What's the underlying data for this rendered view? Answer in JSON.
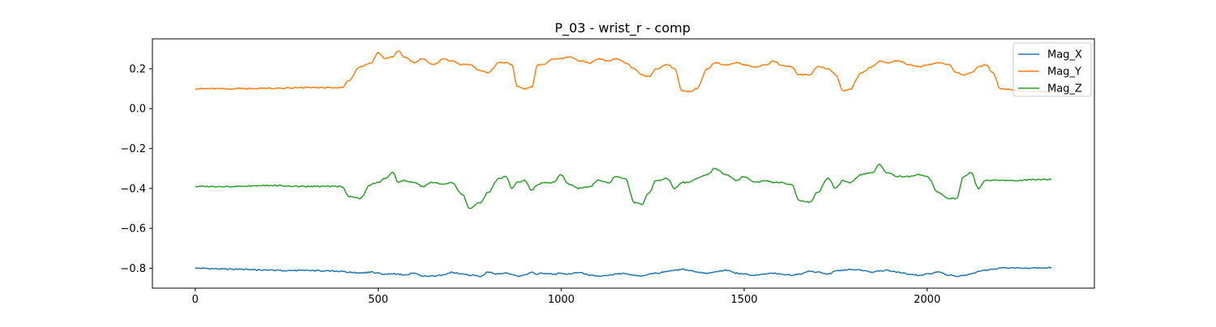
{
  "chart_data": {
    "type": "line",
    "title": "P_03 - wrist_r - comp",
    "xlabel": "",
    "ylabel": "",
    "xlim": [
      -117,
      2457
    ],
    "ylim": [
      -0.9,
      0.35
    ],
    "xticks": [
      0,
      500,
      1000,
      1500,
      2000
    ],
    "xtick_labels": [
      "0",
      "500",
      "1000",
      "1500",
      "2000"
    ],
    "yticks": [
      -0.8,
      -0.6,
      -0.4,
      -0.2,
      0.0,
      0.2
    ],
    "ytick_labels": [
      "−0.8",
      "−0.6",
      "−0.4",
      "−0.2",
      "0.0",
      "0.2"
    ],
    "grid": false,
    "legend_position": "upper-right",
    "x": [
      0,
      100,
      200,
      300,
      400,
      420,
      450,
      480,
      500,
      520,
      540,
      555,
      570,
      600,
      620,
      650,
      680,
      700,
      730,
      750,
      780,
      800,
      830,
      850,
      865,
      880,
      900,
      920,
      935,
      950,
      980,
      1000,
      1020,
      1050,
      1080,
      1100,
      1130,
      1150,
      1175,
      1200,
      1220,
      1240,
      1260,
      1290,
      1310,
      1330,
      1350,
      1370,
      1400,
      1420,
      1450,
      1480,
      1500,
      1530,
      1560,
      1580,
      1600,
      1630,
      1650,
      1680,
      1700,
      1730,
      1750,
      1770,
      1790,
      1820,
      1850,
      1870,
      1890,
      1920,
      1950,
      1980,
      2000,
      2030,
      2060,
      2080,
      2100,
      2120,
      2140,
      2160,
      2180,
      2200,
      2250,
      2300,
      2340
    ],
    "series": [
      {
        "name": "Mag_X",
        "color": "#1f77b4",
        "values": [
          -0.8,
          -0.805,
          -0.81,
          -0.812,
          -0.815,
          -0.82,
          -0.825,
          -0.82,
          -0.825,
          -0.83,
          -0.828,
          -0.83,
          -0.835,
          -0.825,
          -0.84,
          -0.84,
          -0.835,
          -0.82,
          -0.83,
          -0.835,
          -0.84,
          -0.82,
          -0.83,
          -0.825,
          -0.83,
          -0.84,
          -0.835,
          -0.82,
          -0.83,
          -0.825,
          -0.83,
          -0.825,
          -0.83,
          -0.82,
          -0.835,
          -0.84,
          -0.835,
          -0.83,
          -0.825,
          -0.835,
          -0.84,
          -0.83,
          -0.825,
          -0.815,
          -0.81,
          -0.805,
          -0.81,
          -0.82,
          -0.825,
          -0.82,
          -0.81,
          -0.825,
          -0.83,
          -0.835,
          -0.83,
          -0.825,
          -0.83,
          -0.835,
          -0.83,
          -0.815,
          -0.82,
          -0.83,
          -0.815,
          -0.81,
          -0.805,
          -0.81,
          -0.82,
          -0.815,
          -0.81,
          -0.82,
          -0.83,
          -0.835,
          -0.83,
          -0.82,
          -0.835,
          -0.84,
          -0.835,
          -0.83,
          -0.815,
          -0.81,
          -0.805,
          -0.8,
          -0.8,
          -0.798,
          -0.797
        ]
      },
      {
        "name": "Mag_Y",
        "color": "#ff7f0e",
        "values": [
          0.1,
          0.1,
          0.102,
          0.105,
          0.105,
          0.14,
          0.21,
          0.23,
          0.28,
          0.25,
          0.26,
          0.29,
          0.26,
          0.23,
          0.25,
          0.22,
          0.25,
          0.24,
          0.22,
          0.22,
          0.19,
          0.18,
          0.23,
          0.23,
          0.22,
          0.11,
          0.1,
          0.11,
          0.22,
          0.22,
          0.25,
          0.25,
          0.26,
          0.24,
          0.23,
          0.25,
          0.24,
          0.25,
          0.23,
          0.2,
          0.17,
          0.16,
          0.2,
          0.22,
          0.2,
          0.09,
          0.085,
          0.1,
          0.2,
          0.23,
          0.22,
          0.23,
          0.22,
          0.21,
          0.22,
          0.24,
          0.22,
          0.21,
          0.17,
          0.17,
          0.21,
          0.2,
          0.17,
          0.09,
          0.1,
          0.18,
          0.21,
          0.24,
          0.23,
          0.24,
          0.22,
          0.21,
          0.22,
          0.23,
          0.22,
          0.18,
          0.17,
          0.18,
          0.21,
          0.22,
          0.18,
          0.1,
          0.09,
          0.085,
          0.085
        ]
      },
      {
        "name": "Mag_Z",
        "color": "#2ca02c",
        "values": [
          -0.39,
          -0.39,
          -0.385,
          -0.39,
          -0.39,
          -0.44,
          -0.45,
          -0.38,
          -0.37,
          -0.35,
          -0.32,
          -0.37,
          -0.36,
          -0.37,
          -0.39,
          -0.37,
          -0.38,
          -0.37,
          -0.43,
          -0.5,
          -0.47,
          -0.42,
          -0.35,
          -0.34,
          -0.4,
          -0.37,
          -0.36,
          -0.41,
          -0.38,
          -0.37,
          -0.37,
          -0.33,
          -0.38,
          -0.4,
          -0.39,
          -0.36,
          -0.37,
          -0.34,
          -0.35,
          -0.47,
          -0.48,
          -0.42,
          -0.36,
          -0.35,
          -0.4,
          -0.37,
          -0.37,
          -0.35,
          -0.33,
          -0.3,
          -0.33,
          -0.36,
          -0.34,
          -0.37,
          -0.36,
          -0.37,
          -0.37,
          -0.38,
          -0.46,
          -0.47,
          -0.42,
          -0.35,
          -0.4,
          -0.36,
          -0.37,
          -0.33,
          -0.32,
          -0.28,
          -0.32,
          -0.34,
          -0.34,
          -0.33,
          -0.34,
          -0.42,
          -0.45,
          -0.45,
          -0.34,
          -0.32,
          -0.4,
          -0.36,
          -0.36,
          -0.36,
          -0.36,
          -0.355,
          -0.355
        ]
      }
    ]
  }
}
